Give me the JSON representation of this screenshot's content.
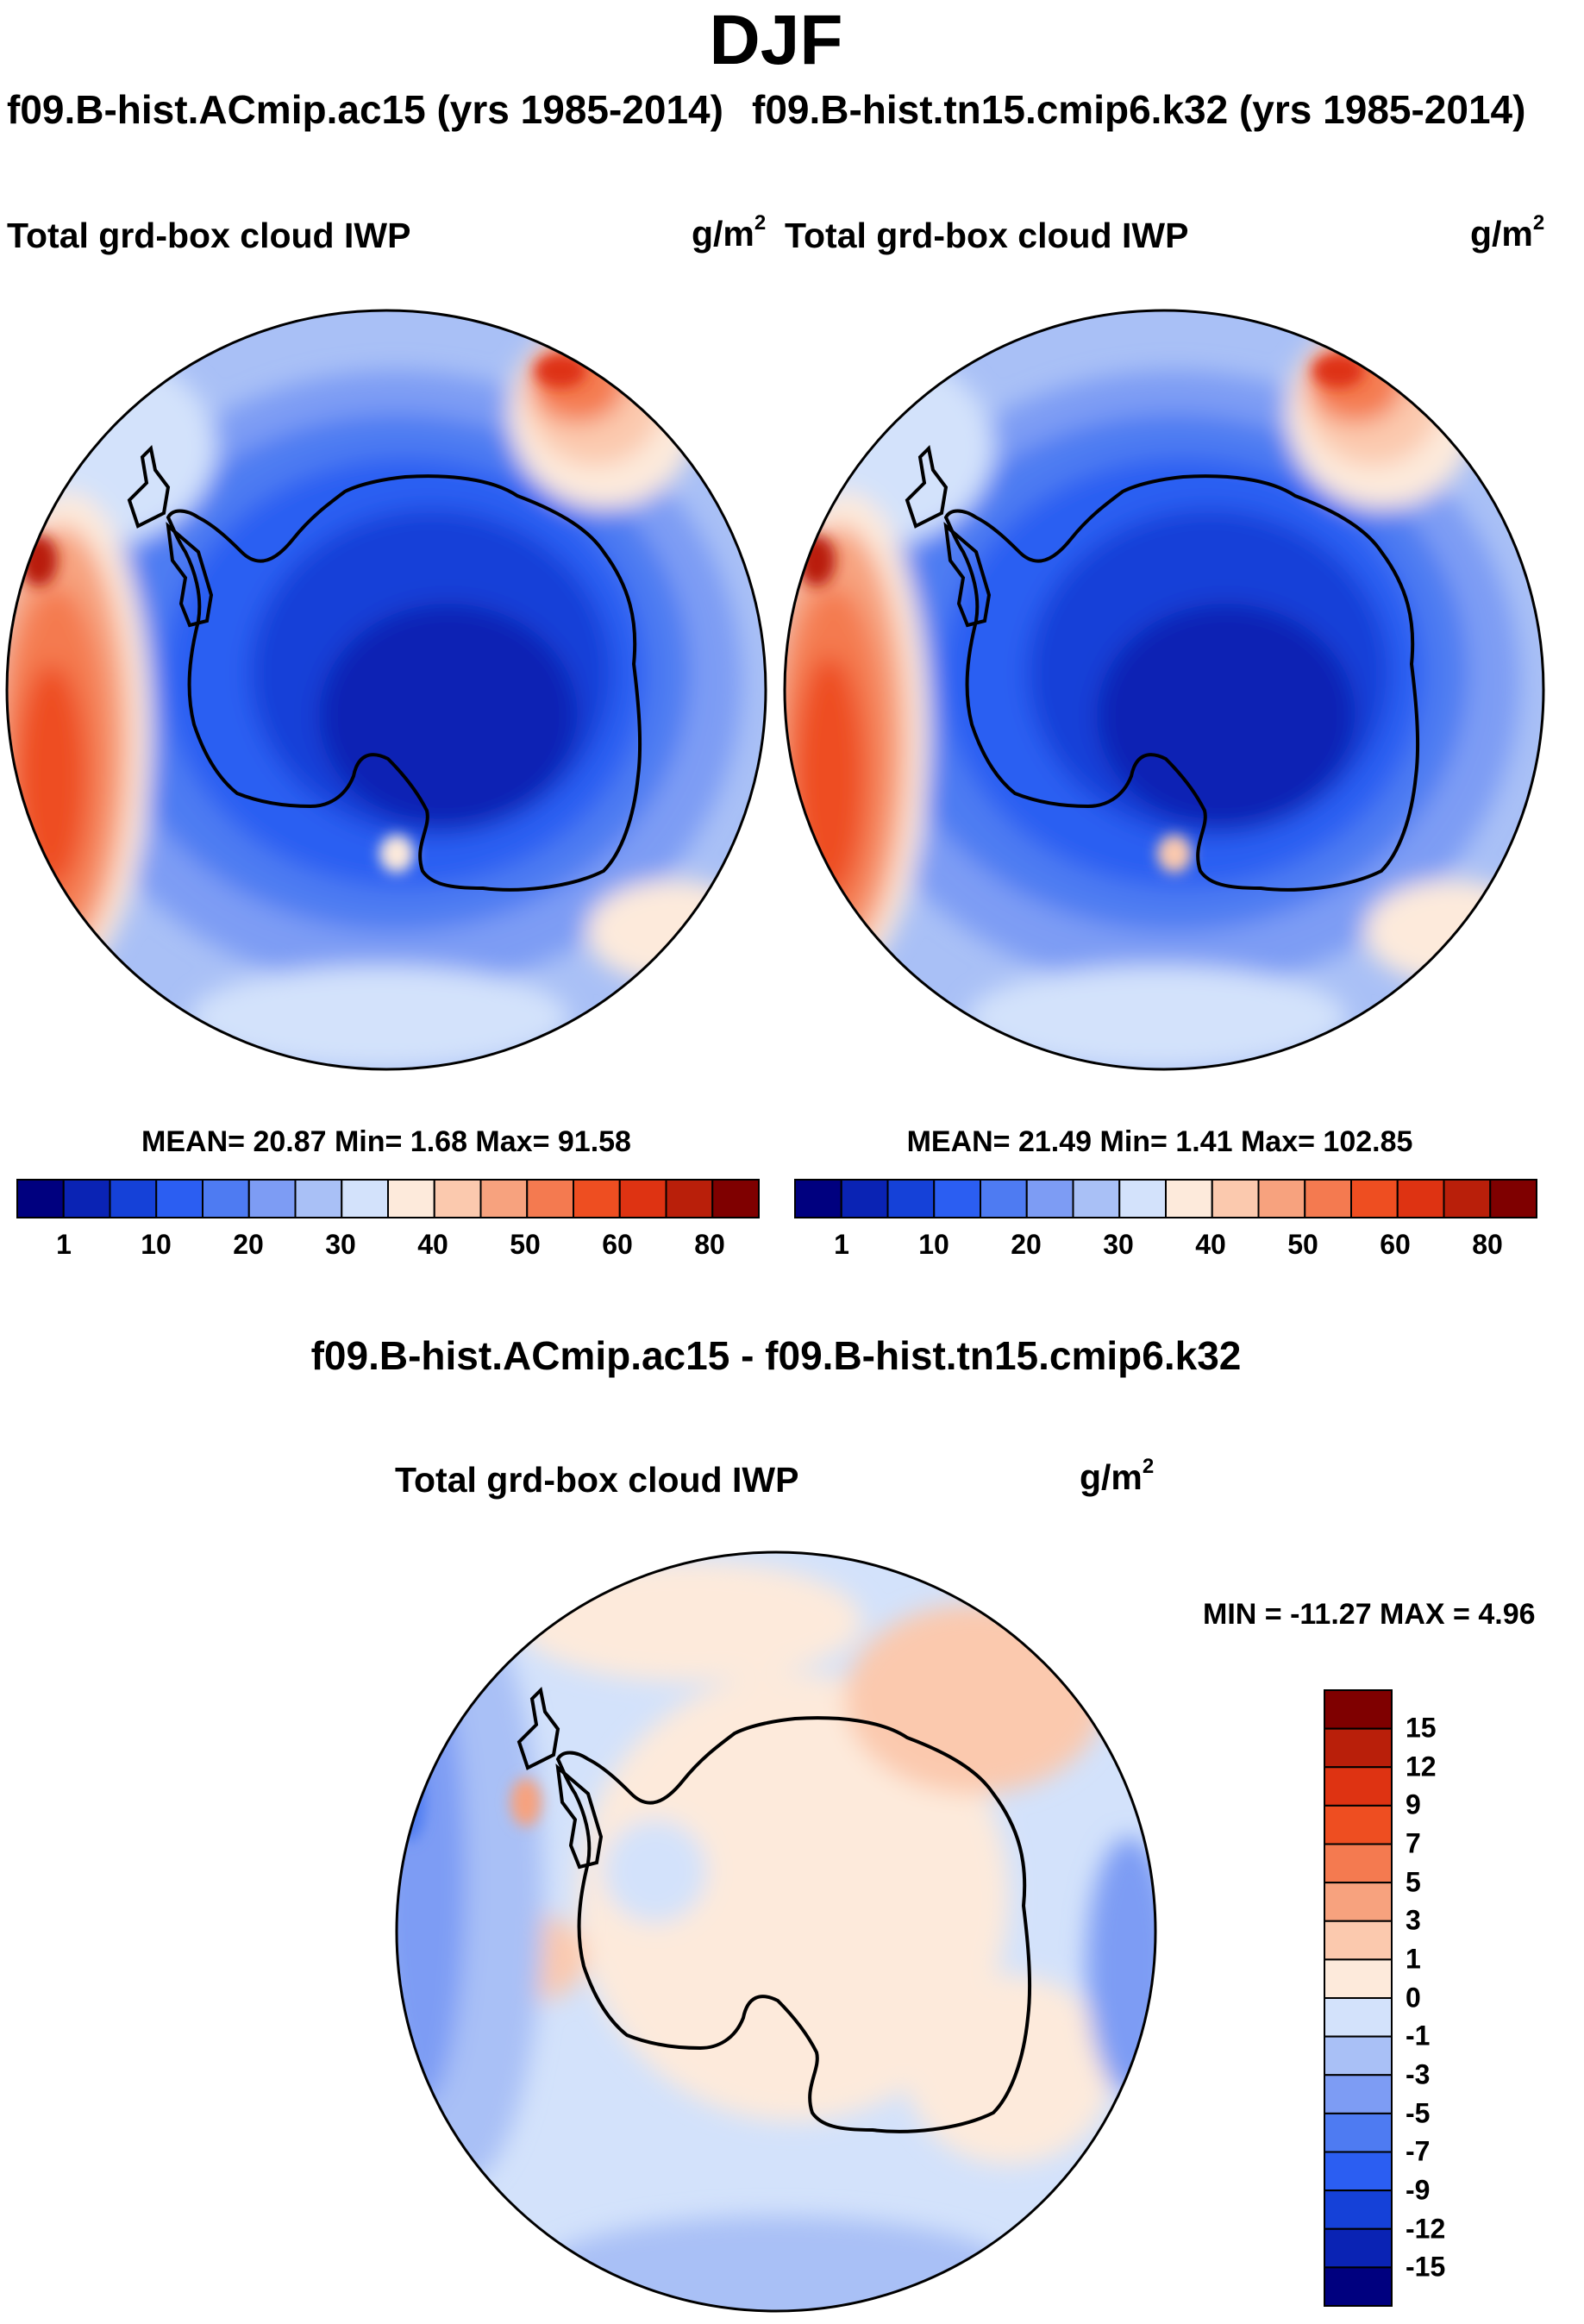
{
  "chart_data": {
    "type": "heatmap",
    "title": "DJF",
    "panels": [
      {
        "name": "f09.B-hist.ACmip.ac15",
        "case_title": "f09.B-hist.ACmip.ac15 (yrs 1985-2014)",
        "variable": "Total grd-box cloud IWP",
        "units_base": "g/m",
        "units_exp": "2",
        "stats_text": "MEAN=  20.87  Min=   1.68  Max=  91.58",
        "mean": 20.87,
        "min": 1.68,
        "max": 91.58,
        "projection": "south-polar-stereographic"
      },
      {
        "name": "f09.B-hist.tn15.cmip6.k32",
        "case_title": "f09.B-hist.tn15.cmip6.k32 (yrs 1985-2014)",
        "variable": "Total grd-box cloud IWP",
        "units_base": "g/m",
        "units_exp": "2",
        "stats_text": "MEAN=  21.49  Min=   1.41  Max= 102.85",
        "mean": 21.49,
        "min": 1.41,
        "max": 102.85,
        "projection": "south-polar-stereographic"
      },
      {
        "name": "difference",
        "case_title": "f09.B-hist.ACmip.ac15 - f09.B-hist.tn15.cmip6.k32",
        "variable": "Total grd-box cloud IWP",
        "units_base": "g/m",
        "units_exp": "2",
        "stats_text": "MIN = -11.27 MAX =    4.96",
        "min": -11.27,
        "max": 4.96,
        "projection": "south-polar-stereographic"
      }
    ],
    "field_colorbar": {
      "orientation": "horizontal",
      "labels": [
        "1",
        "10",
        "20",
        "30",
        "40",
        "50",
        "60",
        "80"
      ],
      "colors": [
        "#00007f",
        "#0a23b4",
        "#1541d8",
        "#2b5ef2",
        "#4e7bf2",
        "#7d9cf4",
        "#a9c0f6",
        "#d3e2fb",
        "#fdeadb",
        "#fbc9ae",
        "#f7a27e",
        "#f47a50",
        "#ee4e21",
        "#de3312",
        "#b91f0a",
        "#7f0000"
      ]
    },
    "diff_colorbar": {
      "orientation": "vertical",
      "labels": [
        "15",
        "12",
        "9",
        "7",
        "5",
        "3",
        "1",
        "0",
        "-1",
        "-3",
        "-5",
        "-7",
        "-9",
        "-12",
        "-15"
      ],
      "colors": [
        "#7f0000",
        "#b91f0a",
        "#de3312",
        "#ee4e21",
        "#f47a50",
        "#f7a27e",
        "#fbc9ae",
        "#fdeadb",
        "#d3e2fb",
        "#a9c0f6",
        "#7d9cf4",
        "#4e7bf2",
        "#2b5ef2",
        "#1541d8",
        "#0a23b4",
        "#00007f"
      ]
    }
  }
}
